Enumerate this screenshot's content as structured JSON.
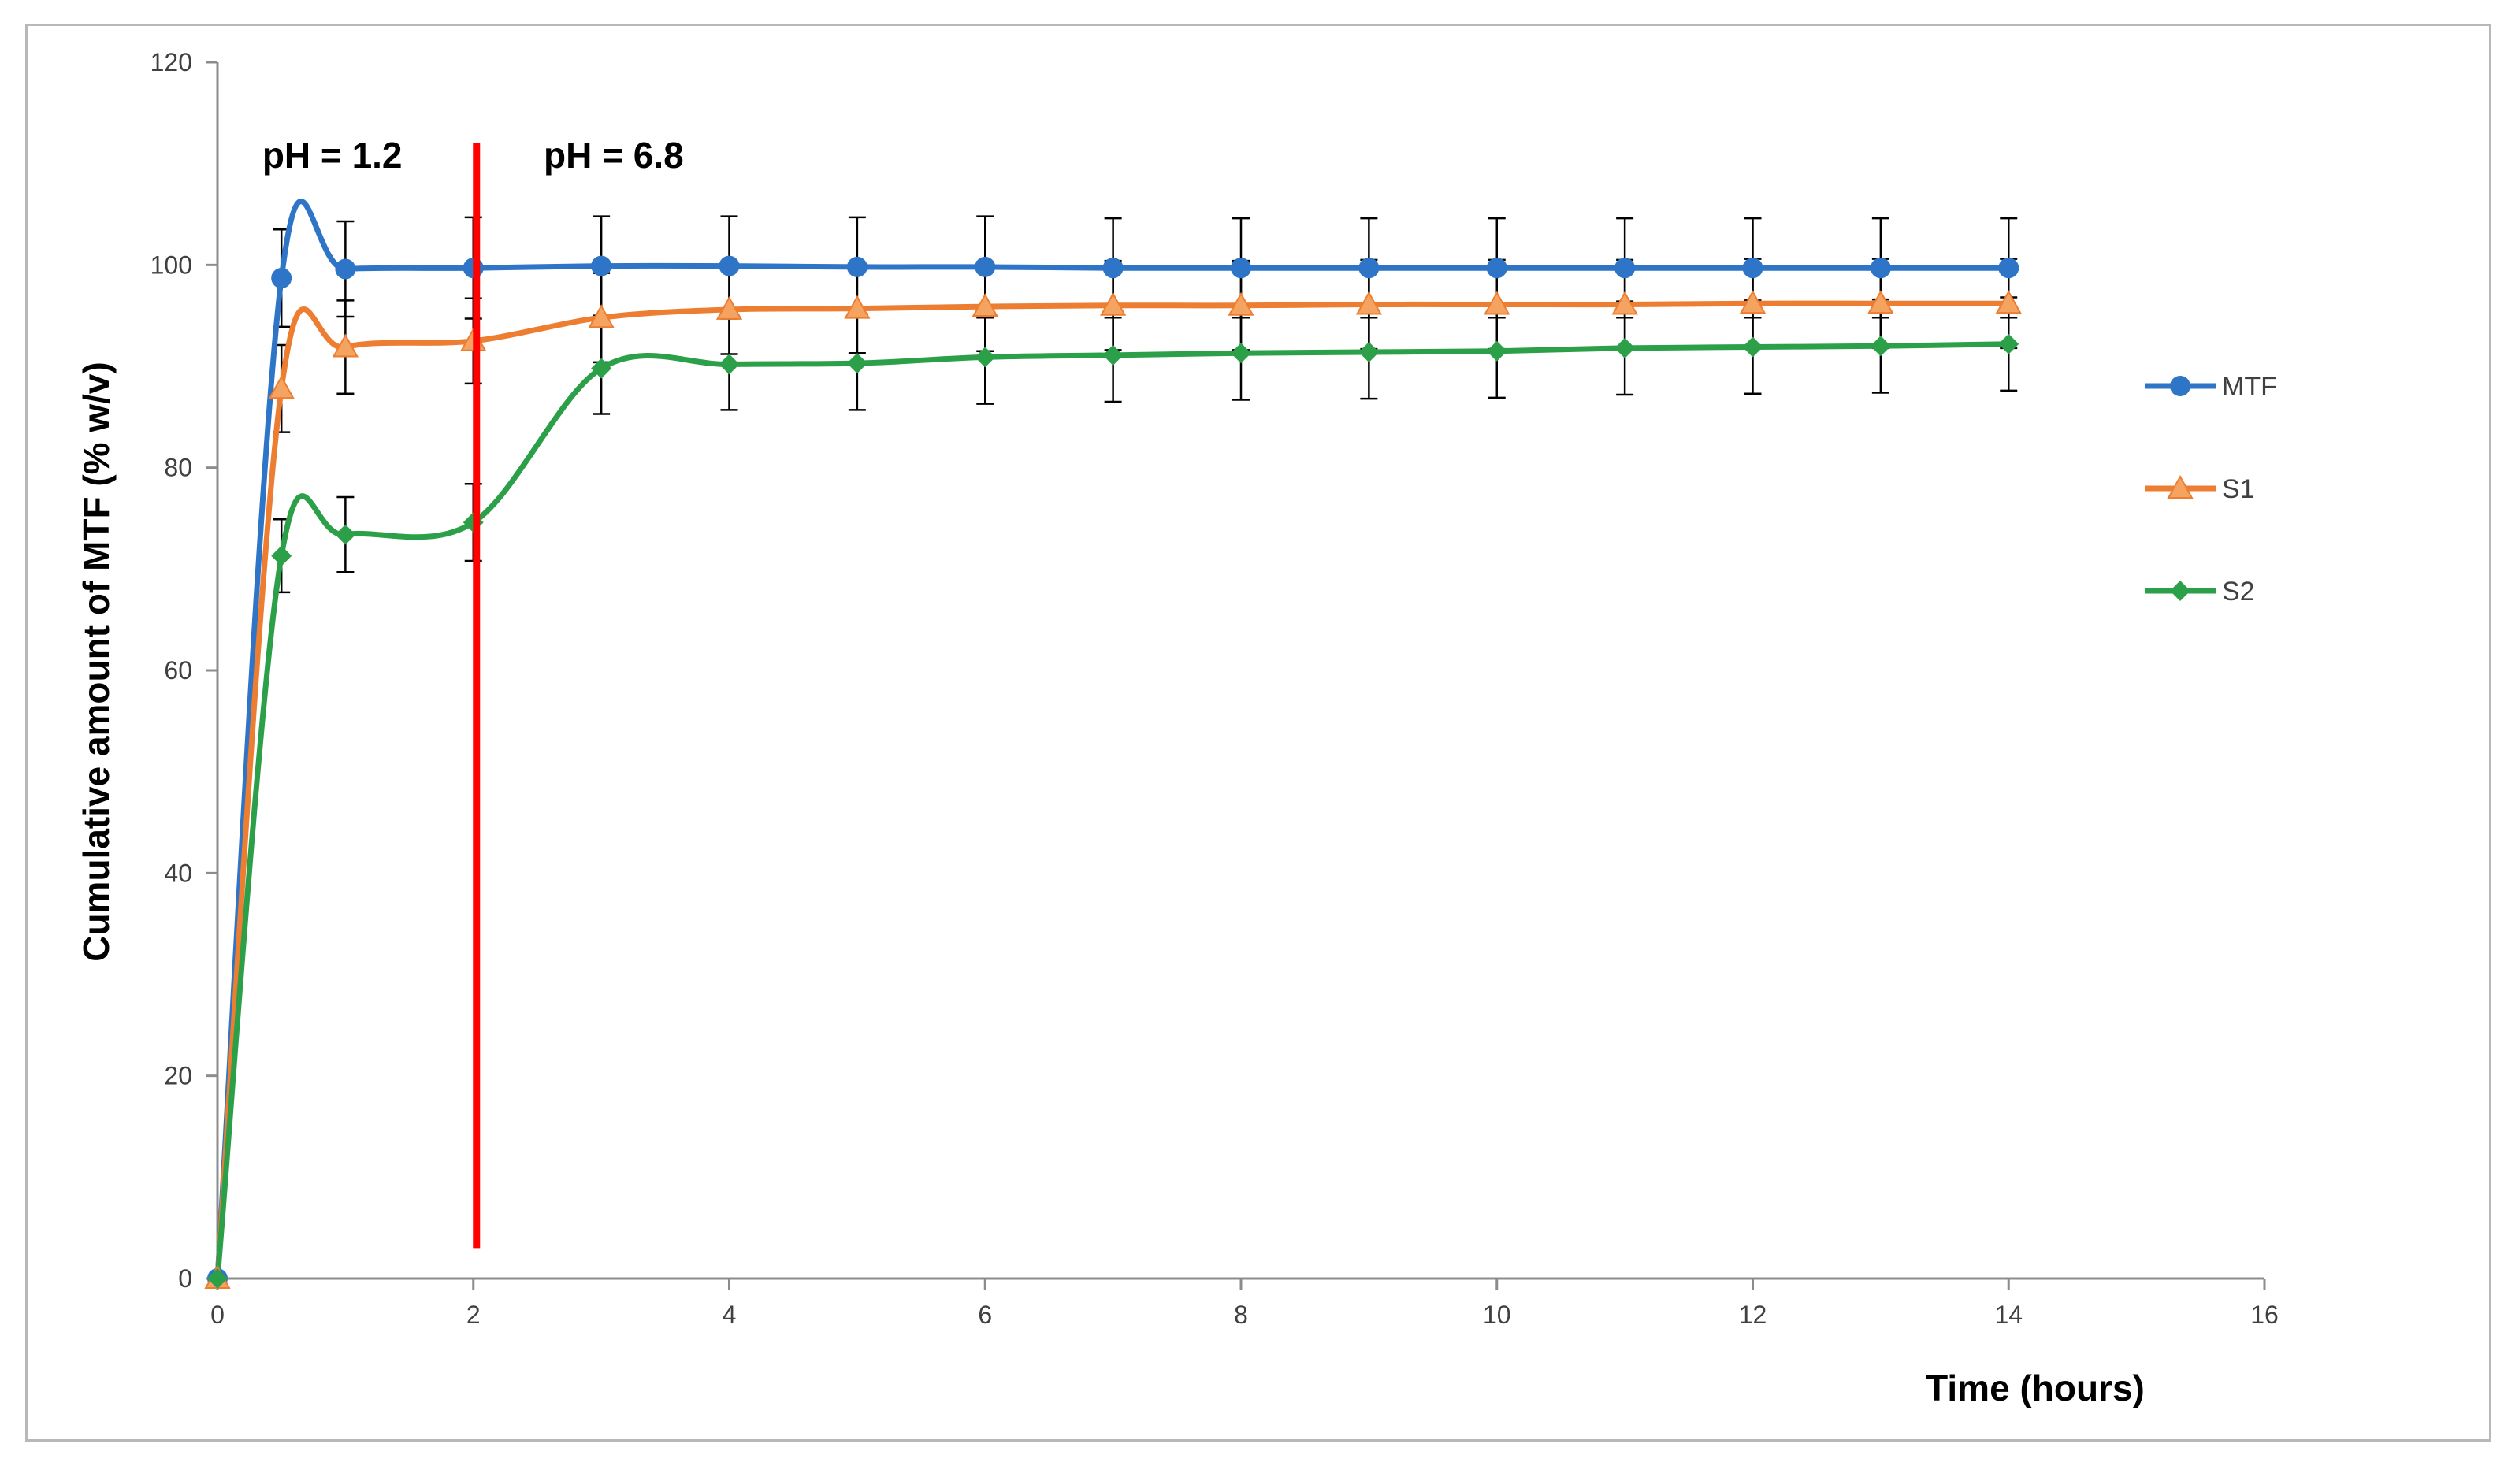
{
  "chart_data": {
    "type": "line",
    "title": "",
    "xlabel": "Time (hours)",
    "ylabel": "Cumulative amount of MTF (% w/v)",
    "xlim": [
      0,
      16
    ],
    "ylim": [
      0,
      120
    ],
    "xticks": [
      0,
      2,
      4,
      6,
      8,
      10,
      12,
      14,
      16
    ],
    "yticks": [
      0,
      20,
      40,
      60,
      80,
      100,
      120
    ],
    "grid": false,
    "legend_position": "right",
    "x": [
      0,
      0.5,
      1,
      2,
      3,
      4,
      5,
      6,
      7,
      8,
      9,
      10,
      11,
      12,
      13,
      14
    ],
    "series": [
      {
        "name": "MTF",
        "color": "#2e75c8",
        "marker": "circle",
        "values": [
          0,
          98.7,
          99.6,
          99.7,
          99.9,
          99.9,
          99.8,
          99.8,
          99.7,
          99.7,
          99.7,
          99.7,
          99.7,
          99.7,
          99.7,
          99.7
        ],
        "errors": [
          0,
          4.8,
          4.7,
          5.0,
          4.9,
          4.9,
          4.9,
          5.0,
          4.9,
          4.9,
          4.9,
          4.9,
          4.9,
          4.9,
          4.9,
          4.9
        ]
      },
      {
        "name": "S1",
        "color": "#ed7d31",
        "marker": "triangle",
        "values": [
          0,
          87.8,
          91.9,
          92.5,
          94.8,
          95.6,
          95.7,
          95.9,
          96.0,
          96.0,
          96.1,
          96.1,
          96.1,
          96.2,
          96.2,
          96.2
        ],
        "errors": [
          0,
          4.3,
          4.6,
          4.2,
          4.4,
          4.4,
          4.4,
          4.4,
          4.4,
          4.4,
          4.4,
          4.4,
          4.4,
          4.4,
          4.4,
          4.4
        ]
      },
      {
        "name": "S2",
        "color": "#2ca048",
        "marker": "diamond",
        "values": [
          0,
          71.3,
          73.4,
          74.6,
          89.8,
          90.2,
          90.3,
          90.9,
          91.1,
          91.3,
          91.4,
          91.5,
          91.8,
          91.9,
          92.0,
          92.2
        ],
        "errors": [
          0,
          3.6,
          3.7,
          3.8,
          4.5,
          4.5,
          4.6,
          4.6,
          4.6,
          4.6,
          4.6,
          4.6,
          4.6,
          4.6,
          4.6,
          4.6
        ]
      }
    ],
    "annotations": [
      {
        "text": "pH = 1.2",
        "x": 0.35,
        "y": 111
      },
      {
        "text": "pH = 6.8",
        "x": 2.55,
        "y": 111
      }
    ],
    "reference_line": {
      "x": 2,
      "y_from": 3,
      "y_to": 112,
      "color": "#ff0000"
    }
  }
}
